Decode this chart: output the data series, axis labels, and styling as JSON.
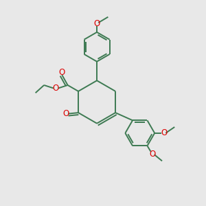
{
  "bg_color": "#e8e8e8",
  "bond_color": "#3d7a52",
  "O_color": "#dd0000",
  "lw": 1.4,
  "fs": 7.0,
  "figsize": [
    3.0,
    3.0
  ],
  "dpi": 100,
  "xlim": [
    0,
    10
  ],
  "ylim": [
    0,
    10
  ]
}
